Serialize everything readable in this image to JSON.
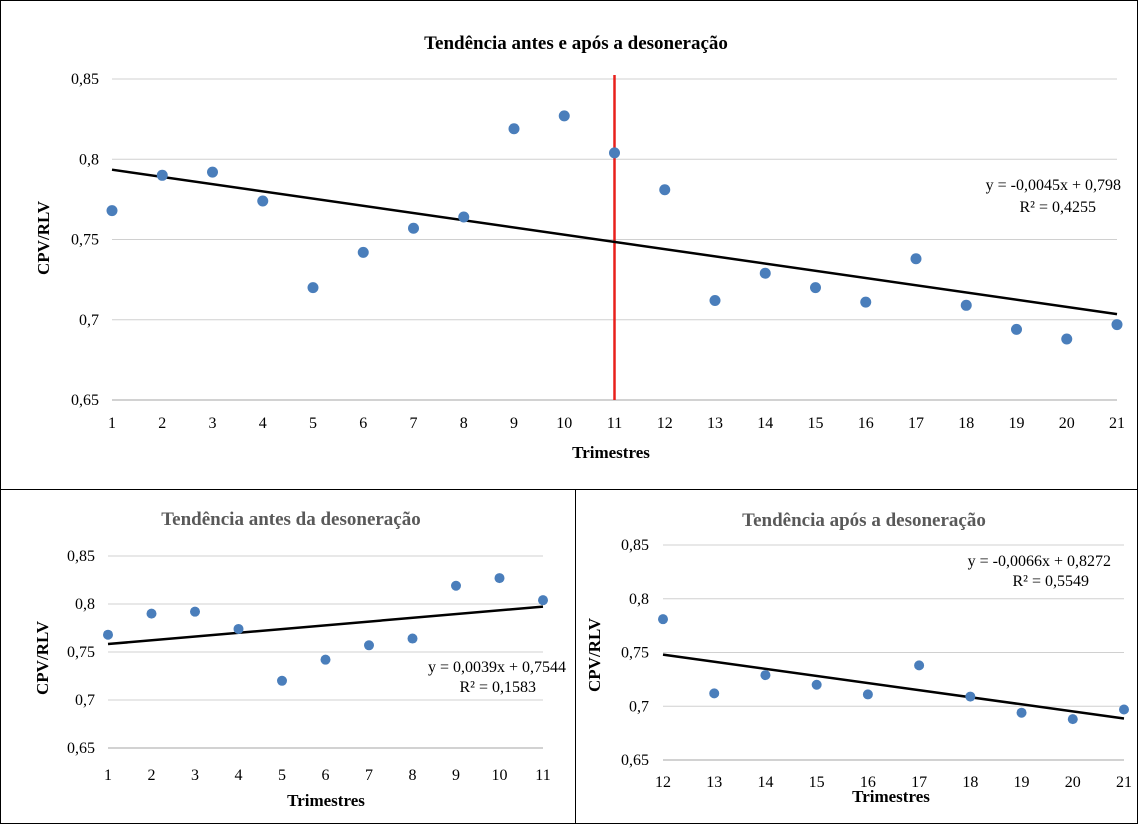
{
  "chart_data": [
    {
      "id": "top",
      "type": "scatter",
      "title": "Tendência antes e após a desoneração",
      "xlabel": "Trimestres",
      "ylabel": "CPV/RLV",
      "xlim": [
        1,
        21
      ],
      "ylim": [
        0.65,
        0.85
      ],
      "yticks": [
        0.65,
        0.7,
        0.75,
        0.8,
        0.85
      ],
      "ytick_labels": [
        "0,65",
        "0,7",
        "0,75",
        "0,8",
        "0,85"
      ],
      "xticks": [
        1,
        2,
        3,
        4,
        5,
        6,
        7,
        8,
        9,
        10,
        11,
        12,
        13,
        14,
        15,
        16,
        17,
        18,
        19,
        20,
        21
      ],
      "grid": true,
      "point_color": "#4a7ebb",
      "x": [
        1,
        2,
        3,
        4,
        5,
        6,
        7,
        8,
        9,
        10,
        11,
        12,
        13,
        14,
        15,
        16,
        17,
        18,
        19,
        20,
        21
      ],
      "y": [
        0.768,
        0.79,
        0.792,
        0.774,
        0.72,
        0.742,
        0.757,
        0.764,
        0.819,
        0.827,
        0.804,
        0.781,
        0.712,
        0.729,
        0.72,
        0.711,
        0.738,
        0.709,
        0.694,
        0.688,
        0.697
      ],
      "trendline": {
        "slope": -0.0045,
        "intercept": 0.798,
        "color": "#000000"
      },
      "equation": "y = -0,0045x + 0,798",
      "r2": "R² = 0,4255",
      "vline": {
        "x": 11,
        "color": "#e8201c"
      }
    },
    {
      "id": "left",
      "type": "scatter",
      "title": "Tendência antes da desoneração",
      "xlabel": "Trimestres",
      "ylabel": "CPV/RLV",
      "xlim": [
        1,
        11
      ],
      "ylim": [
        0.65,
        0.85
      ],
      "yticks": [
        0.65,
        0.7,
        0.75,
        0.8,
        0.85
      ],
      "ytick_labels": [
        "0,65",
        "0,7",
        "0,75",
        "0,8",
        "0,85"
      ],
      "xticks": [
        1,
        2,
        3,
        4,
        5,
        6,
        7,
        8,
        9,
        10,
        11
      ],
      "grid": true,
      "point_color": "#4a7ebb",
      "x": [
        1,
        2,
        3,
        4,
        5,
        6,
        7,
        8,
        9,
        10,
        11
      ],
      "y": [
        0.768,
        0.79,
        0.792,
        0.774,
        0.72,
        0.742,
        0.757,
        0.764,
        0.819,
        0.827,
        0.804
      ],
      "trendline": {
        "slope": 0.0039,
        "intercept": 0.7544,
        "color": "#000000"
      },
      "equation": "y = 0,0039x + 0,7544",
      "r2": "R² = 0,1583"
    },
    {
      "id": "right",
      "type": "scatter",
      "title": "Tendência após a desoneração",
      "xlabel": "Trimestres",
      "ylabel": "CPV/RLV",
      "xlim": [
        12,
        21
      ],
      "ylim": [
        0.65,
        0.85
      ],
      "yticks": [
        0.65,
        0.7,
        0.75,
        0.8,
        0.85
      ],
      "ytick_labels": [
        "0,65",
        "0,7",
        "0,75",
        "0,8",
        "0,85"
      ],
      "xticks": [
        12,
        13,
        14,
        15,
        16,
        17,
        18,
        19,
        20,
        21
      ],
      "grid": true,
      "point_color": "#4a7ebb",
      "x": [
        12,
        13,
        14,
        15,
        16,
        17,
        18,
        19,
        20,
        21
      ],
      "y": [
        0.781,
        0.712,
        0.729,
        0.72,
        0.711,
        0.738,
        0.709,
        0.694,
        0.688,
        0.697
      ],
      "trendline": {
        "slope": -0.0066,
        "intercept": 0.8272,
        "color": "#000000"
      },
      "equation": "y = -0,0066x + 0,8272",
      "r2": "R² = 0,5549"
    }
  ]
}
